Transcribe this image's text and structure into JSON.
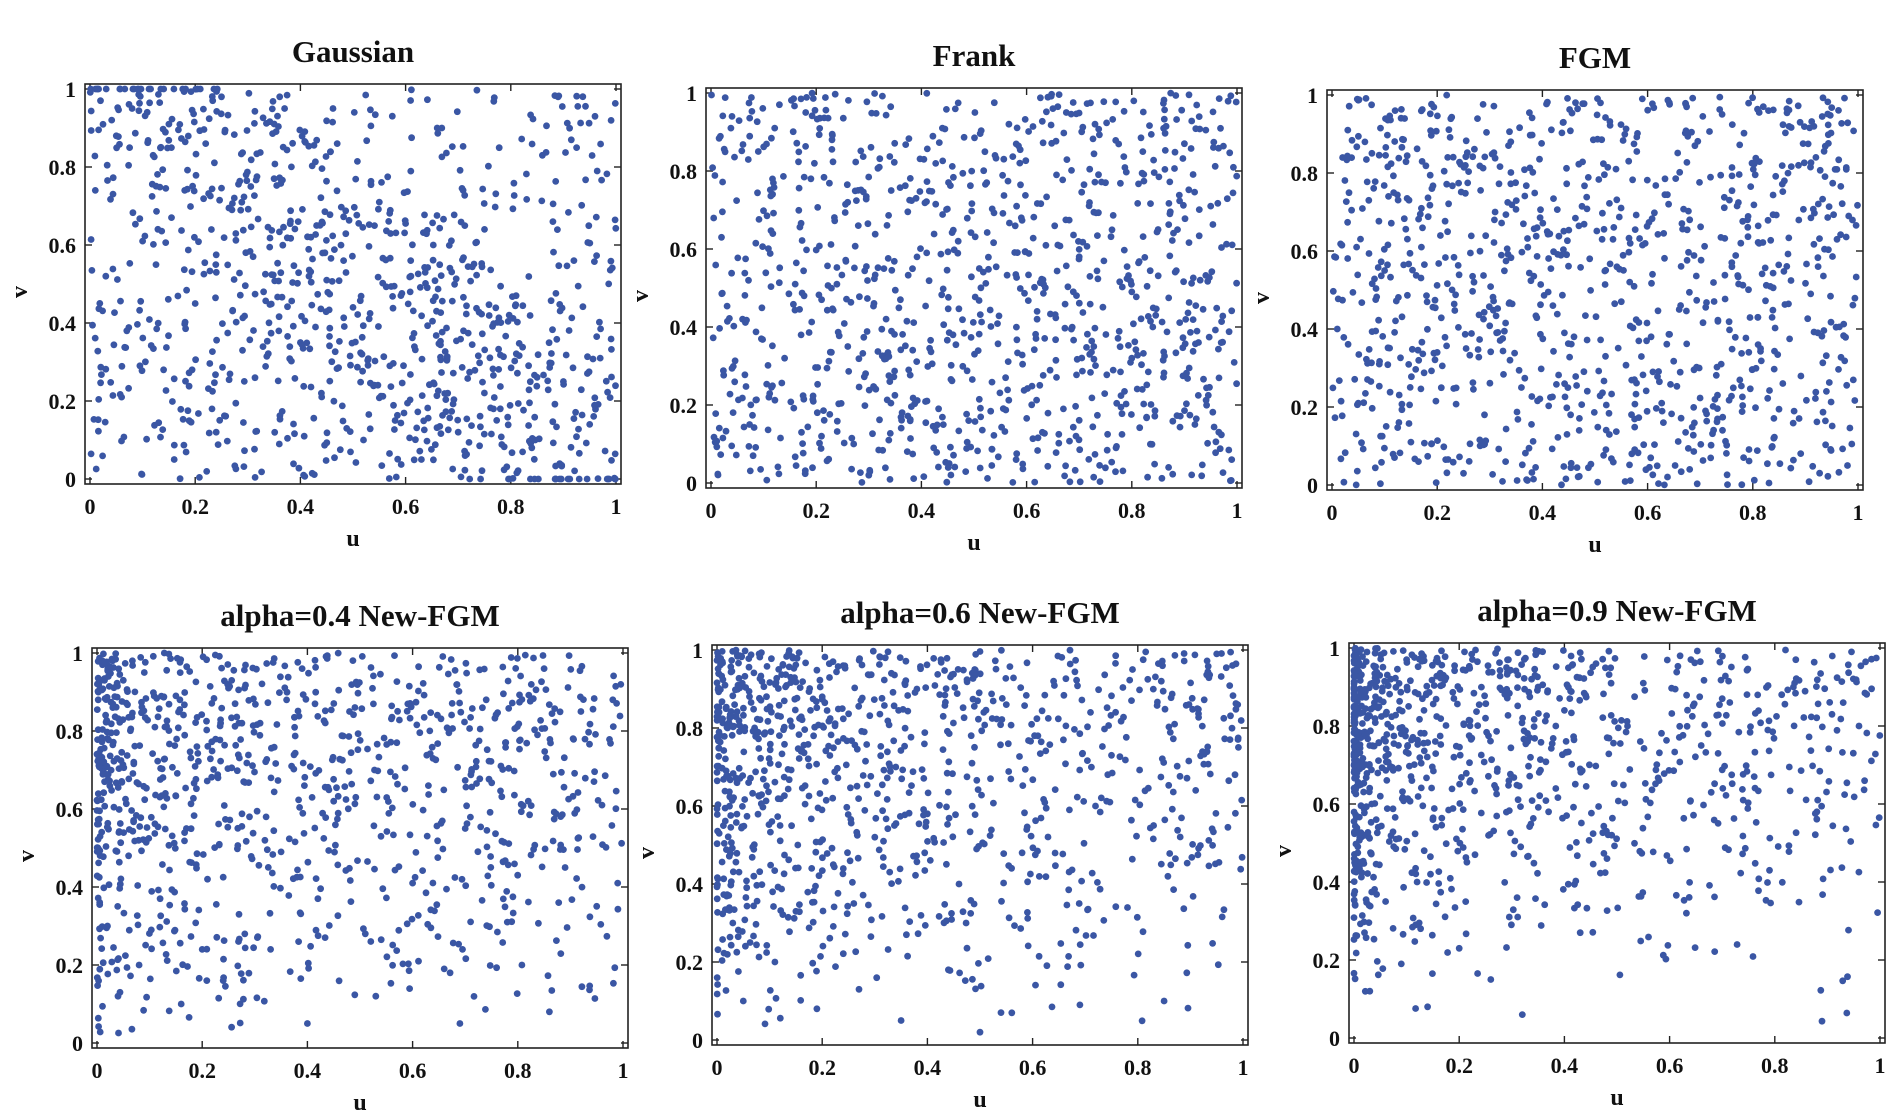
{
  "marker_color": "#3a56a4",
  "chart_data": [
    {
      "type": "scatter",
      "title": "Gaussian",
      "xlabel": "u",
      "ylabel": "v",
      "xlim": [
        0,
        1
      ],
      "ylim": [
        0,
        1
      ],
      "xticks": [
        "0",
        "0.2",
        "0.4",
        "0.6",
        "0.8",
        "1"
      ],
      "yticks": [
        "0",
        "0.2",
        "0.4",
        "0.6",
        "0.8",
        "1"
      ],
      "grid": false,
      "n_points": 1000,
      "points": [
        [
          0.02,
          0.97
        ],
        [
          0.05,
          0.88
        ],
        [
          0.08,
          0.95
        ],
        [
          0.12,
          0.83
        ],
        [
          0.15,
          0.91
        ],
        [
          0.18,
          0.74
        ],
        [
          0.22,
          0.86
        ],
        [
          0.27,
          0.69
        ],
        [
          0.31,
          0.57
        ],
        [
          0.33,
          0.48
        ],
        [
          0.4,
          0.35
        ],
        [
          0.44,
          0.22
        ],
        [
          0.52,
          0.1
        ],
        [
          0.58,
          0.15
        ],
        [
          0.63,
          0.05
        ],
        [
          0.7,
          0.12
        ],
        [
          0.78,
          0.18
        ],
        [
          0.84,
          0.08
        ],
        [
          0.9,
          0.25
        ],
        [
          0.95,
          0.14
        ],
        [
          0.03,
          0.52
        ],
        [
          0.07,
          0.38
        ],
        [
          0.1,
          0.61
        ],
        [
          0.14,
          0.28
        ],
        [
          0.2,
          0.45
        ],
        [
          0.24,
          0.12
        ],
        [
          0.29,
          0.33
        ],
        [
          0.35,
          0.77
        ],
        [
          0.42,
          0.62
        ],
        [
          0.47,
          0.86
        ],
        [
          0.5,
          0.44
        ],
        [
          0.55,
          0.71
        ],
        [
          0.61,
          0.52
        ],
        [
          0.66,
          0.9
        ],
        [
          0.71,
          0.38
        ],
        [
          0.75,
          0.64
        ],
        [
          0.81,
          0.47
        ],
        [
          0.86,
          0.83
        ],
        [
          0.92,
          0.56
        ],
        [
          0.97,
          0.31
        ],
        [
          0.01,
          0.74
        ],
        [
          0.06,
          0.21
        ],
        [
          0.16,
          0.05
        ],
        [
          0.37,
          0.95
        ],
        [
          0.57,
          0.29
        ],
        [
          0.68,
          0.22
        ],
        [
          0.88,
          0.66
        ],
        [
          0.96,
          0.93
        ],
        [
          0.45,
          0.51
        ],
        [
          0.25,
          0.98
        ]
      ]
    },
    {
      "type": "scatter",
      "title": "Frank",
      "xlabel": "u",
      "ylabel": "v",
      "xlim": [
        0,
        1
      ],
      "ylim": [
        0,
        1
      ],
      "xticks": [
        "0",
        "0.2",
        "0.4",
        "0.6",
        "0.8",
        "1"
      ],
      "yticks": [
        "0",
        "0.2",
        "0.4",
        "0.6",
        "0.8",
        "1"
      ],
      "grid": false,
      "n_points": 1000,
      "points": [
        [
          0.04,
          0.94
        ],
        [
          0.09,
          0.85
        ],
        [
          0.13,
          0.97
        ],
        [
          0.19,
          0.78
        ],
        [
          0.23,
          0.88
        ],
        [
          0.28,
          0.66
        ],
        [
          0.32,
          0.81
        ],
        [
          0.36,
          0.47
        ],
        [
          0.41,
          0.59
        ],
        [
          0.46,
          0.38
        ],
        [
          0.51,
          0.55
        ],
        [
          0.56,
          0.27
        ],
        [
          0.62,
          0.44
        ],
        [
          0.67,
          0.19
        ],
        [
          0.72,
          0.33
        ],
        [
          0.77,
          0.09
        ],
        [
          0.82,
          0.24
        ],
        [
          0.87,
          0.04
        ],
        [
          0.92,
          0.15
        ],
        [
          0.97,
          0.36
        ],
        [
          0.02,
          0.63
        ],
        [
          0.06,
          0.42
        ],
        [
          0.11,
          0.22
        ],
        [
          0.16,
          0.51
        ],
        [
          0.21,
          0.12
        ],
        [
          0.26,
          0.35
        ],
        [
          0.3,
          0.02
        ],
        [
          0.39,
          0.73
        ],
        [
          0.44,
          0.91
        ],
        [
          0.49,
          0.16
        ],
        [
          0.54,
          0.84
        ],
        [
          0.59,
          0.68
        ],
        [
          0.65,
          0.96
        ],
        [
          0.7,
          0.58
        ],
        [
          0.75,
          0.77
        ],
        [
          0.8,
          0.49
        ],
        [
          0.85,
          0.65
        ],
        [
          0.9,
          0.87
        ],
        [
          0.95,
          0.71
        ],
        [
          0.99,
          0.06
        ],
        [
          0.08,
          0.07
        ],
        [
          0.14,
          0.32
        ],
        [
          0.34,
          0.26
        ],
        [
          0.58,
          0.06
        ],
        [
          0.73,
          0.92
        ],
        [
          0.84,
          0.4
        ],
        [
          0.93,
          0.52
        ],
        [
          0.47,
          0.62
        ],
        [
          0.18,
          0.95
        ],
        [
          0.63,
          0.13
        ]
      ]
    },
    {
      "type": "scatter",
      "title": "FGM",
      "xlabel": "u",
      "ylabel": "v",
      "xlim": [
        0,
        1
      ],
      "ylim": [
        0,
        1
      ],
      "xticks": [
        "0",
        "0.2",
        "0.4",
        "0.6",
        "0.8",
        "1"
      ],
      "yticks": [
        "0",
        "0.2",
        "0.4",
        "0.6",
        "0.8",
        "1"
      ],
      "grid": false,
      "n_points": 1000,
      "points": [
        [
          0.03,
          0.91
        ],
        [
          0.07,
          0.73
        ],
        [
          0.12,
          0.96
        ],
        [
          0.17,
          0.61
        ],
        [
          0.22,
          0.84
        ],
        [
          0.27,
          0.52
        ],
        [
          0.31,
          0.7
        ],
        [
          0.36,
          0.25
        ],
        [
          0.42,
          0.46
        ],
        [
          0.47,
          0.14
        ],
        [
          0.52,
          0.33
        ],
        [
          0.57,
          0.08
        ],
        [
          0.61,
          0.29
        ],
        [
          0.66,
          0.45
        ],
        [
          0.71,
          0.19
        ],
        [
          0.76,
          0.57
        ],
        [
          0.81,
          0.36
        ],
        [
          0.86,
          0.78
        ],
        [
          0.91,
          0.49
        ],
        [
          0.96,
          0.63
        ],
        [
          0.01,
          0.4
        ],
        [
          0.05,
          0.21
        ],
        [
          0.1,
          0.55
        ],
        [
          0.15,
          0.11
        ],
        [
          0.2,
          0.34
        ],
        [
          0.25,
          0.03
        ],
        [
          0.29,
          0.18
        ],
        [
          0.34,
          0.88
        ],
        [
          0.39,
          0.66
        ],
        [
          0.44,
          0.93
        ],
        [
          0.49,
          0.58
        ],
        [
          0.54,
          0.81
        ],
        [
          0.59,
          0.99
        ],
        [
          0.64,
          0.72
        ],
        [
          0.69,
          0.87
        ],
        [
          0.74,
          0.31
        ],
        [
          0.79,
          0.68
        ],
        [
          0.84,
          0.12
        ],
        [
          0.89,
          0.93
        ],
        [
          0.94,
          0.24
        ],
        [
          0.98,
          0.05
        ],
        [
          0.09,
          0.31
        ],
        [
          0.33,
          0.06
        ],
        [
          0.55,
          0.47
        ],
        [
          0.68,
          0.04
        ],
        [
          0.82,
          0.97
        ],
        [
          0.92,
          0.84
        ],
        [
          0.46,
          0.38
        ],
        [
          0.19,
          0.76
        ],
        [
          0.63,
          0.16
        ]
      ]
    },
    {
      "type": "scatter",
      "title": "alpha=0.4 New-FGM",
      "xlabel": "u",
      "ylabel": "v",
      "xlim": [
        0,
        1
      ],
      "ylim": [
        0,
        1
      ],
      "xticks": [
        "0",
        "0.2",
        "0.4",
        "0.6",
        "0.8",
        "1"
      ],
      "yticks": [
        "0",
        "0.2",
        "0.4",
        "0.6",
        "0.8",
        "1"
      ],
      "grid": false,
      "n_points": 1000,
      "points": [
        [
          0.01,
          0.98
        ],
        [
          0.03,
          0.86
        ],
        [
          0.05,
          0.93
        ],
        [
          0.07,
          0.72
        ],
        [
          0.09,
          0.95
        ],
        [
          0.11,
          0.81
        ],
        [
          0.13,
          0.64
        ],
        [
          0.15,
          0.89
        ],
        [
          0.17,
          0.55
        ],
        [
          0.19,
          0.76
        ],
        [
          0.21,
          0.42
        ],
        [
          0.23,
          0.68
        ],
        [
          0.25,
          0.91
        ],
        [
          0.27,
          0.33
        ],
        [
          0.29,
          0.58
        ],
        [
          0.31,
          0.82
        ],
        [
          0.33,
          0.24
        ],
        [
          0.35,
          0.49
        ],
        [
          0.37,
          0.71
        ],
        [
          0.39,
          0.96
        ],
        [
          0.42,
          0.37
        ],
        [
          0.45,
          0.62
        ],
        [
          0.48,
          0.85
        ],
        [
          0.51,
          0.28
        ],
        [
          0.54,
          0.53
        ],
        [
          0.57,
          0.77
        ],
        [
          0.6,
          0.41
        ],
        [
          0.63,
          0.66
        ],
        [
          0.66,
          0.19
        ],
        [
          0.7,
          0.55
        ],
        [
          0.74,
          0.88
        ],
        [
          0.78,
          0.31
        ],
        [
          0.82,
          0.62
        ],
        [
          0.86,
          0.08
        ],
        [
          0.89,
          0.45
        ],
        [
          0.92,
          0.85
        ],
        [
          0.96,
          0.61
        ],
        [
          0.99,
          0.41
        ],
        [
          0.02,
          0.3
        ],
        [
          0.04,
          0.12
        ],
        [
          0.06,
          0.48
        ],
        [
          0.08,
          0.2
        ],
        [
          0.12,
          0.37
        ],
        [
          0.16,
          0.1
        ],
        [
          0.2,
          0.24
        ],
        [
          0.24,
          0.16
        ],
        [
          0.4,
          0.05
        ],
        [
          0.53,
          0.12
        ],
        [
          0.69,
          0.05
        ],
        [
          0.85,
          0.96
        ]
      ]
    },
    {
      "type": "scatter",
      "title": "alpha=0.6 New-FGM",
      "xlabel": "u",
      "ylabel": "v",
      "xlim": [
        0,
        1
      ],
      "ylim": [
        0,
        1
      ],
      "xticks": [
        "0",
        "0.2",
        "0.4",
        "0.6",
        "0.8",
        "1"
      ],
      "yticks": [
        "0",
        "0.2",
        "0.4",
        "0.6",
        "0.8",
        "1"
      ],
      "grid": false,
      "n_points": 1000,
      "points": [
        [
          0.01,
          0.97
        ],
        [
          0.02,
          0.8
        ],
        [
          0.04,
          0.91
        ],
        [
          0.06,
          0.66
        ],
        [
          0.08,
          0.99
        ],
        [
          0.1,
          0.85
        ],
        [
          0.12,
          0.55
        ],
        [
          0.14,
          0.93
        ],
        [
          0.16,
          0.74
        ],
        [
          0.18,
          0.44
        ],
        [
          0.2,
          0.88
        ],
        [
          0.22,
          0.62
        ],
        [
          0.24,
          0.96
        ],
        [
          0.26,
          0.35
        ],
        [
          0.28,
          0.79
        ],
        [
          0.3,
          0.52
        ],
        [
          0.32,
          0.98
        ],
        [
          0.34,
          0.7
        ],
        [
          0.36,
          0.27
        ],
        [
          0.38,
          0.9
        ],
        [
          0.4,
          0.58
        ],
        [
          0.43,
          0.83
        ],
        [
          0.46,
          0.4
        ],
        [
          0.49,
          0.95
        ],
        [
          0.52,
          0.67
        ],
        [
          0.55,
          0.86
        ],
        [
          0.58,
          0.48
        ],
        [
          0.61,
          0.78
        ],
        [
          0.64,
          0.92
        ],
        [
          0.67,
          0.59
        ],
        [
          0.71,
          0.84
        ],
        [
          0.75,
          0.73
        ],
        [
          0.79,
          0.95
        ],
        [
          0.83,
          0.55
        ],
        [
          0.87,
          0.81
        ],
        [
          0.91,
          0.64
        ],
        [
          0.95,
          0.99
        ],
        [
          0.99,
          0.86
        ],
        [
          0.03,
          0.3
        ],
        [
          0.05,
          0.1
        ],
        [
          0.07,
          0.42
        ],
        [
          0.11,
          0.2
        ],
        [
          0.15,
          0.33
        ],
        [
          0.19,
          0.08
        ],
        [
          0.27,
          0.13
        ],
        [
          0.35,
          0.05
        ],
        [
          0.44,
          0.18
        ],
        [
          0.5,
          0.02
        ],
        [
          0.69,
          0.09
        ],
        [
          0.85,
          0.1
        ]
      ]
    },
    {
      "type": "scatter",
      "title": "alpha=0.9 New-FGM",
      "xlabel": "u",
      "ylabel": "v",
      "xlim": [
        0,
        1
      ],
      "ylim": [
        0,
        1
      ],
      "xticks": [
        "0",
        "0.2",
        "0.4",
        "0.6",
        "0.8",
        "1"
      ],
      "yticks": [
        "0",
        "0.2",
        "0.4",
        "0.6",
        "0.8",
        "1"
      ],
      "grid": false,
      "n_points": 1000,
      "points": [
        [
          0.01,
          0.99
        ],
        [
          0.02,
          0.88
        ],
        [
          0.03,
          0.75
        ],
        [
          0.04,
          0.95
        ],
        [
          0.05,
          0.62
        ],
        [
          0.06,
          0.83
        ],
        [
          0.07,
          0.92
        ],
        [
          0.08,
          0.51
        ],
        [
          0.09,
          0.78
        ],
        [
          0.1,
          0.97
        ],
        [
          0.11,
          0.66
        ],
        [
          0.12,
          0.4
        ],
        [
          0.13,
          0.87
        ],
        [
          0.15,
          0.56
        ],
        [
          0.17,
          0.93
        ],
        [
          0.19,
          0.72
        ],
        [
          0.21,
          0.99
        ],
        [
          0.23,
          0.47
        ],
        [
          0.25,
          0.82
        ],
        [
          0.27,
          0.64
        ],
        [
          0.29,
          0.95
        ],
        [
          0.31,
          0.36
        ],
        [
          0.33,
          0.76
        ],
        [
          0.35,
          0.9
        ],
        [
          0.37,
          0.58
        ],
        [
          0.4,
          0.84
        ],
        [
          0.43,
          0.69
        ],
        [
          0.46,
          0.96
        ],
        [
          0.49,
          0.52
        ],
        [
          0.52,
          0.8
        ],
        [
          0.55,
          0.91
        ],
        [
          0.58,
          0.66
        ],
        [
          0.62,
          0.98
        ],
        [
          0.66,
          0.75
        ],
        [
          0.7,
          0.87
        ],
        [
          0.74,
          0.61
        ],
        [
          0.79,
          0.43
        ],
        [
          0.84,
          0.97
        ],
        [
          0.88,
          0.58
        ],
        [
          0.93,
          0.86
        ],
        [
          0.96,
          0.8
        ],
        [
          0.02,
          0.27
        ],
        [
          0.03,
          0.12
        ],
        [
          0.06,
          0.35
        ],
        [
          0.09,
          0.19
        ],
        [
          0.14,
          0.08
        ],
        [
          0.2,
          0.23
        ],
        [
          0.26,
          0.15
        ],
        [
          0.32,
          0.06
        ],
        [
          0.43,
          0.27
        ]
      ]
    }
  ]
}
